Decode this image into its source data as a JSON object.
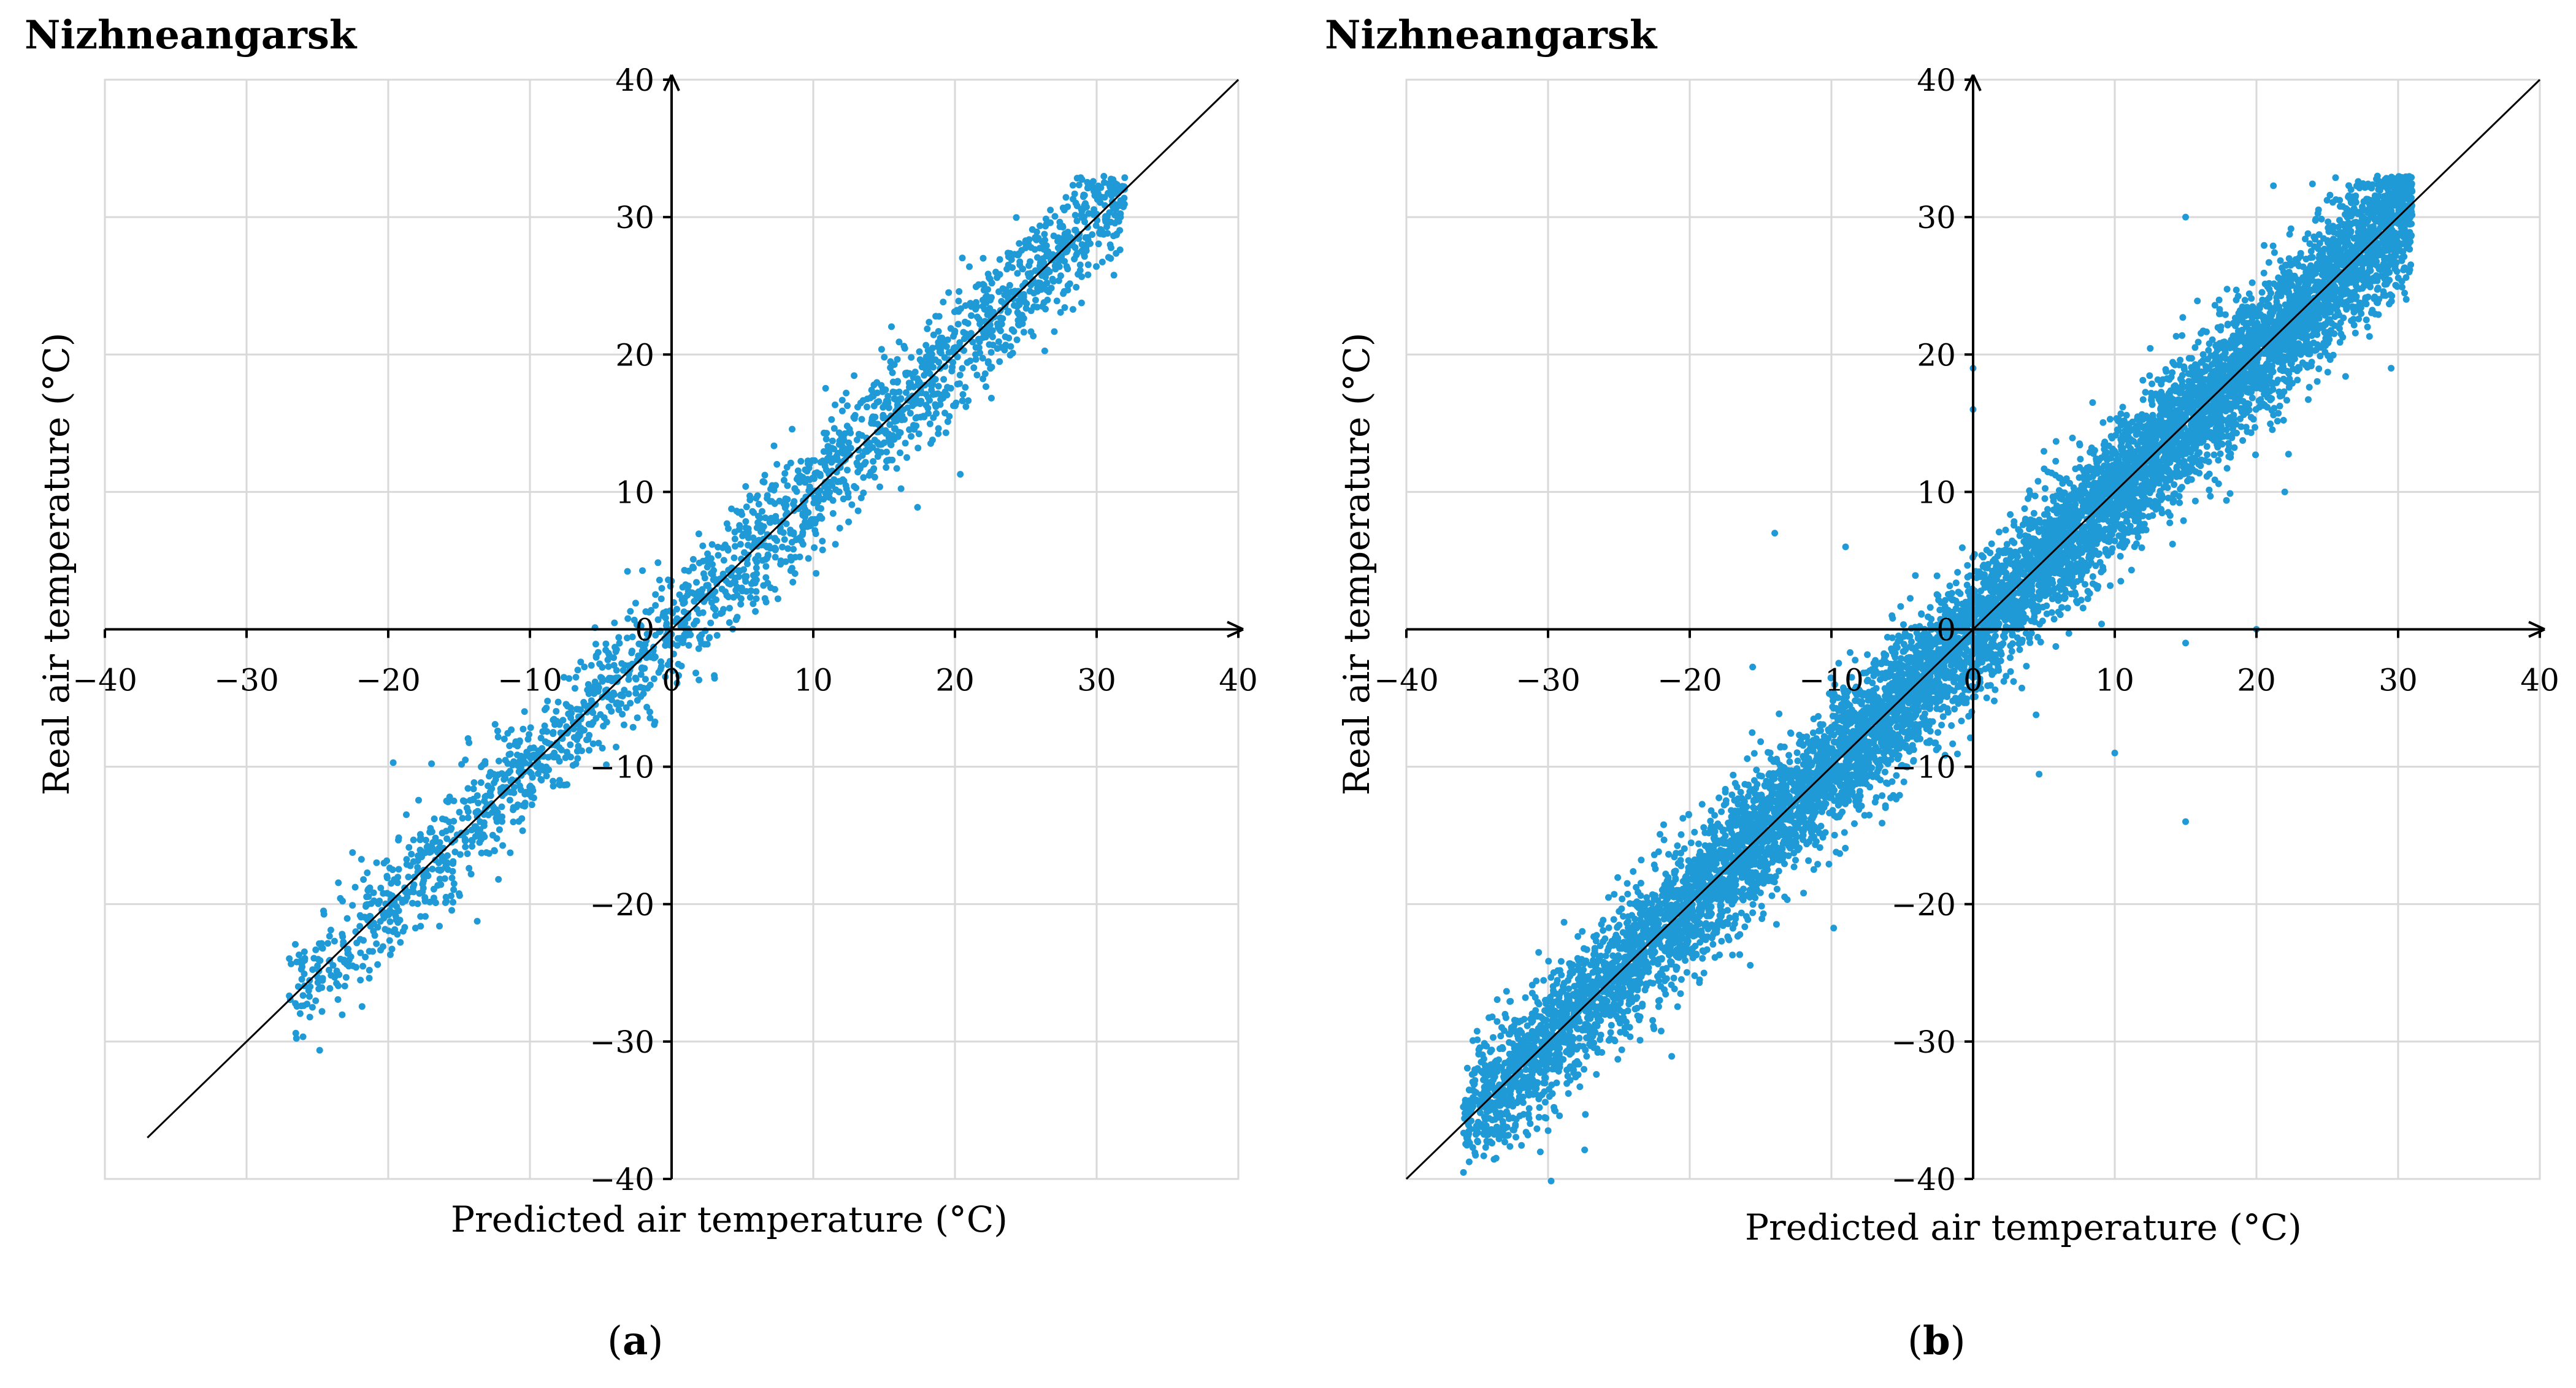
{
  "chart_data": [
    {
      "id": "a",
      "type": "scatter",
      "title": "Nizhneangarsk",
      "caption_letter": "a",
      "xlabel": "Predicted air temperature (°C)",
      "ylabel": "Real air temperature (°C)",
      "xlim": [
        -40,
        40
      ],
      "ylim": [
        -40,
        40
      ],
      "xticks": [
        -40,
        -30,
        -20,
        -10,
        0,
        10,
        20,
        30,
        40
      ],
      "yticks": [
        -40,
        -30,
        -20,
        -10,
        0,
        10,
        20,
        30,
        40
      ],
      "tick_labels_x": [
        "−40",
        "−30",
        "−20",
        "−10",
        "0",
        "10",
        "20",
        "30",
        "40"
      ],
      "tick_labels_y": [
        "−40",
        "−30",
        "−20",
        "−10",
        "0",
        "10",
        "20",
        "30",
        "40"
      ],
      "point_color": "#1f9ad6",
      "line_color": "#000000",
      "reference_line": {
        "x": [
          -37,
          40
        ],
        "y": [
          -37,
          40
        ]
      },
      "series": [
        {
          "name": "observations",
          "x_range": [
            -27,
            32
          ],
          "n_points": 2200,
          "spread": 2.1
        }
      ],
      "grid": true
    },
    {
      "id": "b",
      "type": "scatter",
      "title": "Nizhneangarsk",
      "caption_letter": "b",
      "xlabel": "Predicted air temperature (°C)",
      "ylabel": "Real air temperature (°C)",
      "xlim": [
        -40,
        40
      ],
      "ylim": [
        -40,
        40
      ],
      "xticks": [
        -40,
        -30,
        -20,
        -10,
        0,
        10,
        20,
        30,
        40
      ],
      "yticks": [
        -40,
        -30,
        -20,
        -10,
        0,
        10,
        20,
        30,
        40
      ],
      "tick_labels_x": [
        "−40",
        "−30",
        "−20",
        "−10",
        "0",
        "10",
        "20",
        "30",
        "40"
      ],
      "tick_labels_y": [
        "−40",
        "−30",
        "−20",
        "−10",
        "0",
        "10",
        "20",
        "30",
        "40"
      ],
      "point_color": "#1f9ad6",
      "line_color": "#000000",
      "reference_line": {
        "x": [
          -40,
          40
        ],
        "y": [
          -40,
          40
        ]
      },
      "series": [
        {
          "name": "observations",
          "x_range": [
            -36,
            31
          ],
          "n_points": 9000,
          "spread": 2.4
        }
      ],
      "outliers": [
        {
          "x": -14,
          "y": 7
        },
        {
          "x": 15,
          "y": -14
        },
        {
          "x": 10,
          "y": -9
        },
        {
          "x": 20,
          "y": 0
        },
        {
          "x": 22,
          "y": 10
        },
        {
          "x": 15,
          "y": 30
        },
        {
          "x": -9,
          "y": 6
        },
        {
          "x": 0,
          "y": 16
        },
        {
          "x": 0,
          "y": 19
        },
        {
          "x": 15,
          "y": -1
        }
      ],
      "grid": true
    }
  ]
}
